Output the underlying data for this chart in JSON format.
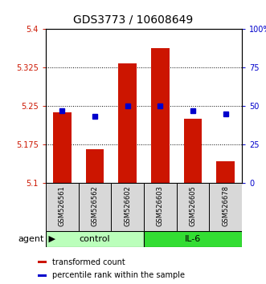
{
  "title": "GDS3773 / 10608649",
  "samples": [
    "GSM526561",
    "GSM526562",
    "GSM526602",
    "GSM526603",
    "GSM526605",
    "GSM526678"
  ],
  "red_values": [
    5.237,
    5.165,
    5.333,
    5.362,
    5.225,
    5.142
  ],
  "blue_percentiles": [
    47,
    43,
    50,
    50,
    47,
    45
  ],
  "ylim_left": [
    5.1,
    5.4
  ],
  "ylim_right": [
    0,
    100
  ],
  "yticks_left": [
    5.1,
    5.175,
    5.25,
    5.325,
    5.4
  ],
  "yticks_right": [
    0,
    25,
    50,
    75,
    100
  ],
  "ytick_labels_left": [
    "5.1",
    "5.175",
    "5.25",
    "5.325",
    "5.4"
  ],
  "ytick_labels_right": [
    "0",
    "25",
    "50",
    "75",
    "100%"
  ],
  "hlines": [
    5.175,
    5.25,
    5.325
  ],
  "bar_bottom": 5.1,
  "bar_color": "#cc1500",
  "blue_color": "#0000cc",
  "groups": [
    {
      "label": "control",
      "indices": [
        0,
        1,
        2
      ],
      "color": "#bbffbb"
    },
    {
      "label": "IL-6",
      "indices": [
        3,
        4,
        5
      ],
      "color": "#33dd33"
    }
  ],
  "agent_label": "agent",
  "legend_items": [
    {
      "label": "transformed count",
      "color": "#cc1500"
    },
    {
      "label": "percentile rank within the sample",
      "color": "#0000cc"
    }
  ],
  "bar_width": 0.55,
  "title_fontsize": 10,
  "tick_fontsize": 7,
  "sample_fontsize": 6,
  "group_label_fontsize": 8,
  "legend_fontsize": 7
}
